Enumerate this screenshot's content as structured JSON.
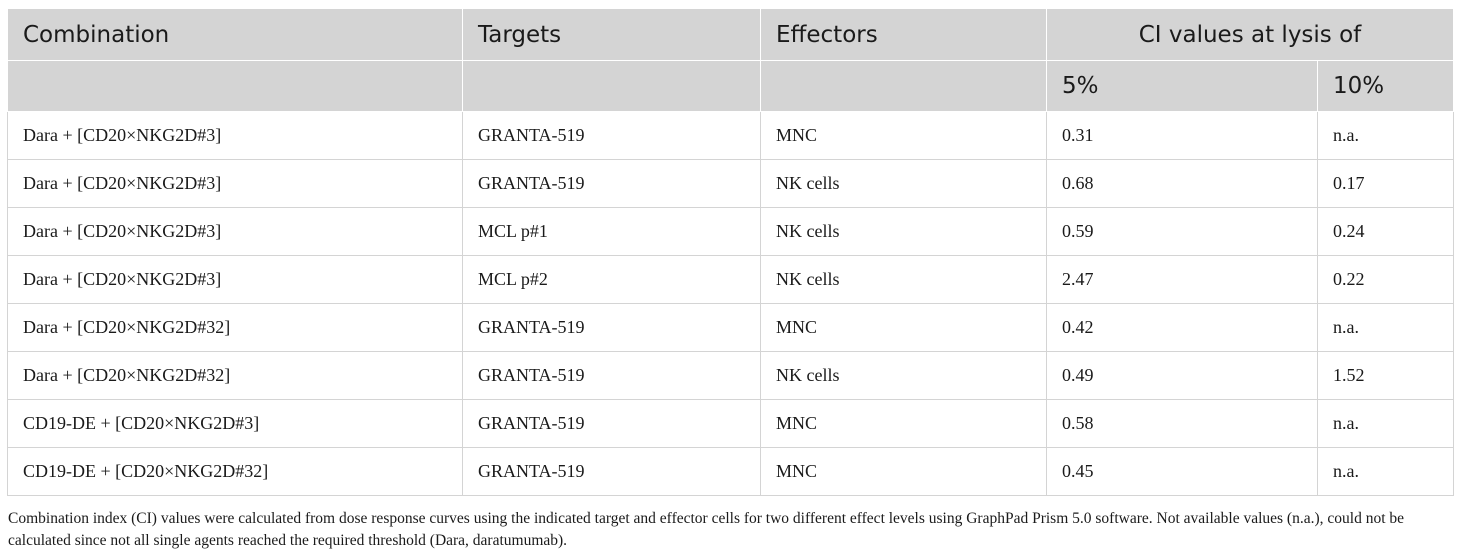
{
  "header": {
    "combination": "Combination",
    "targets": "Targets",
    "effectors": "Effectors",
    "ci_group": "CI values at lysis of",
    "ci_5": "5%",
    "ci_10": "10%"
  },
  "rows": [
    {
      "combination": "Dara + [CD20×NKG2D#3]",
      "targets": "GRANTA-519",
      "effectors": "MNC",
      "ci5": "0.31",
      "ci10": "n.a."
    },
    {
      "combination": "Dara + [CD20×NKG2D#3]",
      "targets": "GRANTA-519",
      "effectors": "NK cells",
      "ci5": "0.68",
      "ci10": "0.17"
    },
    {
      "combination": "Dara + [CD20×NKG2D#3]",
      "targets": "MCL p#1",
      "effectors": "NK cells",
      "ci5": "0.59",
      "ci10": "0.24"
    },
    {
      "combination": "Dara + [CD20×NKG2D#3]",
      "targets": "MCL p#2",
      "effectors": "NK cells",
      "ci5": "2.47",
      "ci10": "0.22"
    },
    {
      "combination": "Dara + [CD20×NKG2D#32]",
      "targets": "GRANTA-519",
      "effectors": "MNC",
      "ci5": "0.42",
      "ci10": "n.a."
    },
    {
      "combination": "Dara + [CD20×NKG2D#32]",
      "targets": "GRANTA-519",
      "effectors": "NK cells",
      "ci5": "0.49",
      "ci10": "1.52"
    },
    {
      "combination": "CD19-DE + [CD20×NKG2D#3]",
      "targets": "GRANTA-519",
      "effectors": "MNC",
      "ci5": "0.58",
      "ci10": "n.a."
    },
    {
      "combination": "CD19-DE + [CD20×NKG2D#32]",
      "targets": "GRANTA-519",
      "effectors": "MNC",
      "ci5": "0.45",
      "ci10": "n.a."
    }
  ],
  "caption": "Combination index (CI) values were calculated from dose response curves using the indicated target and effector cells for two different effect levels using GraphPad Prism 5.0 software. Not available values (n.a.), could not be calculated since not all single agents reached the required threshold (Dara, daratumumab)."
}
